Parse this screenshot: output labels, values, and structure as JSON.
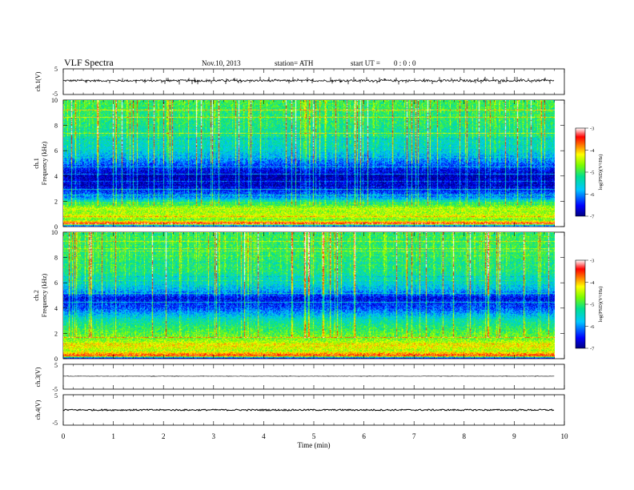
{
  "header": {
    "title": "VLF  Spectra",
    "date": "Nov.10, 2013",
    "station": "station= ATH",
    "start_label": "start  UT  =",
    "start_time": "0  : 0  : 0"
  },
  "chart_data": [
    {
      "type": "line",
      "panel": "ch1-waveform",
      "ylabel": "ch.1(V)",
      "ylim": [
        -5,
        5
      ],
      "yticks": [
        "5",
        "-5"
      ],
      "xlim": [
        0,
        9.8
      ],
      "series": [
        {
          "baseline": 0.4,
          "noise_amplitude": 0.4,
          "spike_amplitude": 1.5
        }
      ]
    },
    {
      "type": "heatmap",
      "panel": "ch1-spectrogram",
      "ylabel": "Frequency  (kHz)",
      "channel_label": "ch.1",
      "ylim": [
        0,
        10
      ],
      "yticks": [
        "0",
        "2",
        "4",
        "6",
        "8",
        "10"
      ],
      "xlim": [
        0,
        9.8
      ],
      "colorbar": {
        "label": "log(PSD)(V²/Hz)",
        "range": [
          -7,
          -3
        ],
        "ticks": [
          "-3",
          "-4",
          "-5",
          "-6",
          "-7"
        ]
      },
      "band_profile": [
        {
          "f": 0.0,
          "v": -6.7
        },
        {
          "f": 0.2,
          "v": -3.3
        },
        {
          "f": 0.5,
          "v": -4.8
        },
        {
          "f": 0.8,
          "v": -4.3
        },
        {
          "f": 1.1,
          "v": -4.6
        },
        {
          "f": 1.4,
          "v": -4.4
        },
        {
          "f": 1.8,
          "v": -5.2
        },
        {
          "f": 2.3,
          "v": -6.0
        },
        {
          "f": 3.0,
          "v": -6.6
        },
        {
          "f": 4.0,
          "v": -6.9
        },
        {
          "f": 5.0,
          "v": -6.2
        },
        {
          "f": 6.0,
          "v": -5.6
        },
        {
          "f": 8.0,
          "v": -5.2
        },
        {
          "f": 10.0,
          "v": -5.0
        }
      ]
    },
    {
      "type": "heatmap",
      "panel": "ch2-spectrogram",
      "ylabel": "Frequency  (kHz)",
      "channel_label": "ch.2",
      "ylim": [
        0,
        10
      ],
      "yticks": [
        "0",
        "2",
        "4",
        "6",
        "8",
        "10"
      ],
      "xlim": [
        0,
        9.8
      ],
      "colorbar": {
        "label": "log(PSD)(V²/Hz)",
        "range": [
          -7,
          -3
        ],
        "ticks": [
          "-3",
          "-4",
          "-5",
          "-6",
          "-7"
        ]
      },
      "band_profile": [
        {
          "f": 0.0,
          "v": -6.7
        },
        {
          "f": 0.2,
          "v": -3.5
        },
        {
          "f": 0.6,
          "v": -4.5
        },
        {
          "f": 1.0,
          "v": -4.2
        },
        {
          "f": 1.5,
          "v": -4.7
        },
        {
          "f": 2.2,
          "v": -5.0
        },
        {
          "f": 3.0,
          "v": -5.4
        },
        {
          "f": 4.0,
          "v": -6.3
        },
        {
          "f": 4.8,
          "v": -6.6
        },
        {
          "f": 5.5,
          "v": -5.8
        },
        {
          "f": 7.0,
          "v": -5.2
        },
        {
          "f": 10.0,
          "v": -5.0
        }
      ]
    },
    {
      "type": "line",
      "panel": "ch3-waveform",
      "ylabel": "ch.3(V)",
      "ylim": [
        -5,
        5
      ],
      "yticks": [
        "5",
        "-5"
      ],
      "xlim": [
        0,
        9.8
      ],
      "series": [
        {
          "baseline": 0.2,
          "noise_amplitude": 0.05,
          "spike_amplitude": 0.3
        }
      ]
    },
    {
      "type": "line",
      "panel": "ch4-waveform",
      "ylabel": "ch.4(V)",
      "ylim": [
        -5,
        5
      ],
      "yticks": [
        "5",
        "-5"
      ],
      "xlim": [
        0,
        9.8
      ],
      "series": [
        {
          "baseline": 0.0,
          "noise_amplitude": 0.25,
          "spike_amplitude": 0.0
        }
      ]
    }
  ],
  "xaxis": {
    "label": "Time  (min)",
    "range": [
      0,
      10
    ],
    "ticks": [
      "0",
      "1",
      "2",
      "3",
      "4",
      "5",
      "6",
      "7",
      "8",
      "9",
      "10"
    ]
  }
}
